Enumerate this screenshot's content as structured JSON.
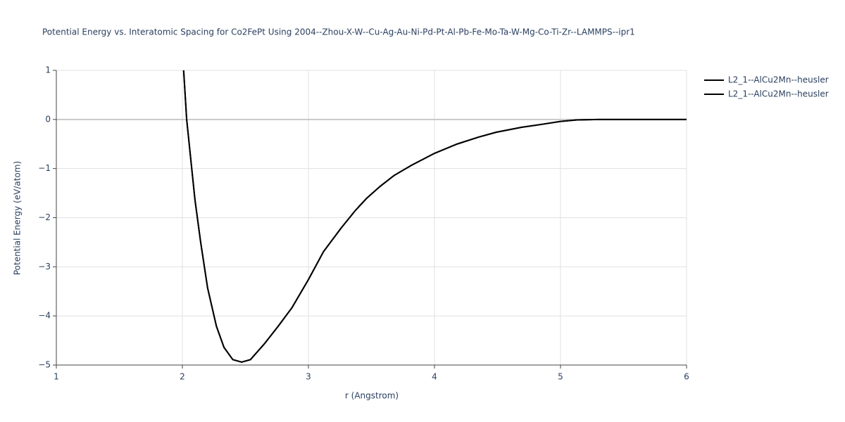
{
  "chart_data": {
    "type": "line",
    "title": "Potential Energy vs. Interatomic Spacing for Co2FePt Using 2004--Zhou-X-W--Cu-Ag-Au-Ni-Pd-Pt-Al-Pb-Fe-Mo-Ta-W-Mg-Co-Ti-Zr--LAMMPS--ipr1",
    "x_label": "r (Angstrom)",
    "y_label": "Potential Energy (eV/atom)",
    "xlim": [
      1,
      6
    ],
    "xticks": [
      1,
      2,
      3,
      4,
      5,
      6
    ],
    "ylim": [
      -5,
      1
    ],
    "yticks": [
      {
        "value": -5,
        "label": "−5"
      },
      {
        "value": -4,
        "label": "−4"
      },
      {
        "value": -3,
        "label": "−3"
      },
      {
        "value": -2,
        "label": "−2"
      },
      {
        "value": -1,
        "label": "−1"
      },
      0,
      1
    ],
    "grid": true,
    "series": [
      {
        "name": "L2_1--AlCu2Mn--heusler",
        "color": "#000000",
        "x": [
          2.01,
          2.034,
          2.1,
          2.145,
          2.2,
          2.27,
          2.33,
          2.4,
          2.47,
          2.54,
          2.65,
          2.76,
          2.87,
          3.0,
          3.12,
          3.26,
          3.37,
          3.46,
          3.57,
          3.68,
          3.82,
          4.0,
          4.18,
          4.35,
          4.49,
          4.69,
          4.85,
          5.0,
          5.13,
          5.3,
          6.0
        ],
        "values": [
          1.0,
          0.0,
          -1.64,
          -2.5,
          -3.43,
          -4.21,
          -4.64,
          -4.89,
          -4.94,
          -4.89,
          -4.57,
          -4.21,
          -3.83,
          -3.26,
          -2.69,
          -2.21,
          -1.86,
          -1.61,
          -1.36,
          -1.14,
          -0.93,
          -0.69,
          -0.5,
          -0.36,
          -0.26,
          -0.16,
          -0.1,
          -0.04,
          -0.01,
          0.0,
          0.0
        ]
      },
      {
        "name": "L2_1--AlCu2Mn--heusler",
        "color": "#000000",
        "x": [
          2.01,
          2.034,
          2.1,
          2.145,
          2.2,
          2.27,
          2.33,
          2.4,
          2.47,
          2.54,
          2.65,
          2.76,
          2.87,
          3.0,
          3.12,
          3.26,
          3.37,
          3.46,
          3.57,
          3.68,
          3.82,
          4.0,
          4.18,
          4.35,
          4.49,
          4.69,
          4.85,
          5.0,
          5.13,
          5.3,
          6.0
        ],
        "values": [
          1.0,
          0.0,
          -1.64,
          -2.5,
          -3.43,
          -4.21,
          -4.64,
          -4.89,
          -4.94,
          -4.89,
          -4.57,
          -4.21,
          -3.83,
          -3.26,
          -2.69,
          -2.21,
          -1.86,
          -1.61,
          -1.36,
          -1.14,
          -0.93,
          -0.69,
          -0.5,
          -0.36,
          -0.26,
          -0.16,
          -0.1,
          -0.04,
          -0.01,
          0.0,
          0.0
        ]
      }
    ],
    "legend": "top-right"
  }
}
